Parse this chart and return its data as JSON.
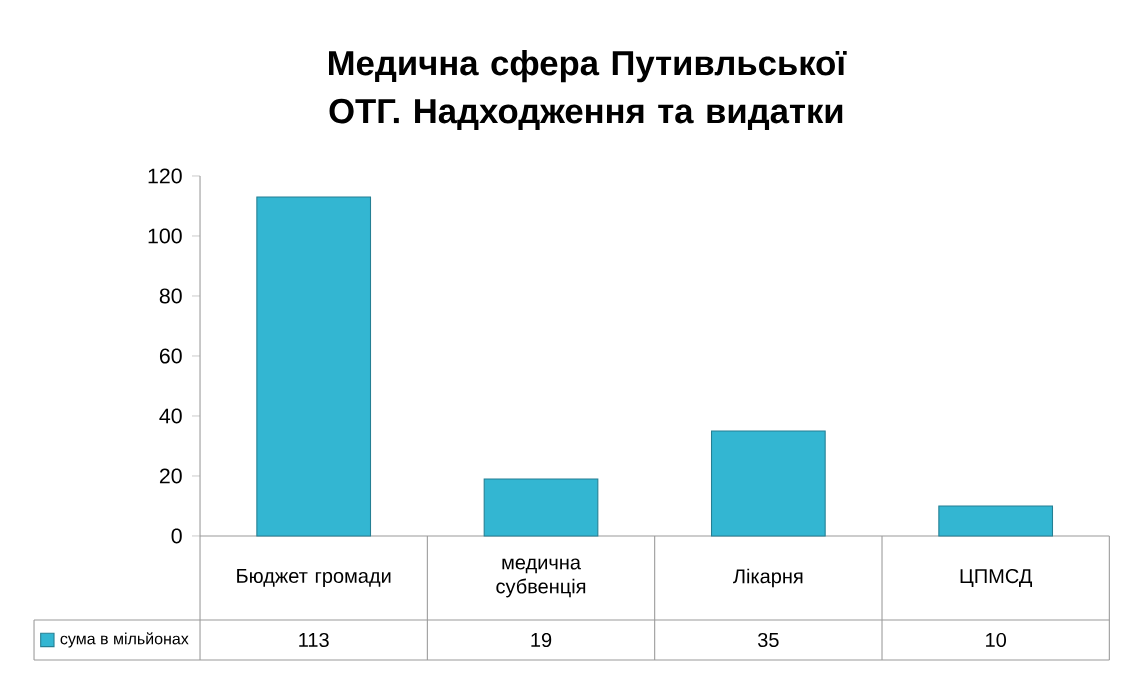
{
  "chart_data": {
    "type": "bar",
    "title": "Медична сфера Путивльської ОТГ. Надходження та видатки",
    "categories": [
      "Бюджет громади",
      "медична субвенція",
      "Лікарня",
      "ЦПМСД"
    ],
    "series": [
      {
        "name": "сума в мільйонах",
        "color": "#33b6d2",
        "values": [
          113,
          19,
          35,
          10
        ]
      }
    ],
    "ylim": [
      0,
      120
    ],
    "yticks": [
      0,
      20,
      40,
      60,
      80,
      100,
      120
    ],
    "data_labels": true,
    "grid": false
  }
}
